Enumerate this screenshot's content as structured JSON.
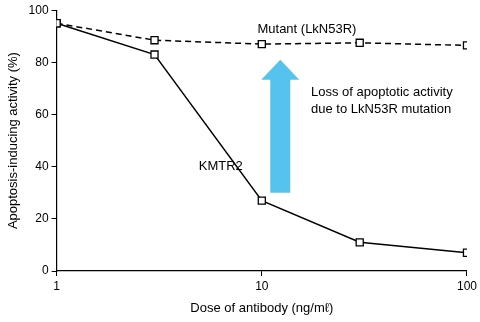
{
  "chart_data": {
    "type": "line",
    "x_label": "Dose of antibody (ng/mℓ)",
    "y_label": "Apoptosis-inducing activity (%)",
    "annotation": "Loss of apoptotic activity due to LkN53R mutation",
    "x": [
      1,
      3,
      10,
      30,
      100
    ],
    "series": [
      {
        "name": "Mutant (LkN53R)",
        "color": "#000000",
        "marker": "square",
        "line_style": "dashed",
        "values": [
          95,
          88.5,
          87,
          87.5,
          86.5
        ]
      },
      {
        "name": "KMTR2",
        "color": "#000000",
        "marker": "square",
        "line_style": "solid",
        "values": [
          95,
          83,
          27,
          11,
          7
        ]
      }
    ],
    "xlim": [
      1,
      100
    ],
    "xticks": [
      1,
      10,
      100
    ],
    "ylim": [
      0,
      100
    ],
    "yticks": [
      0,
      20,
      40,
      60,
      80,
      100
    ],
    "log": "x",
    "grid": false
  }
}
